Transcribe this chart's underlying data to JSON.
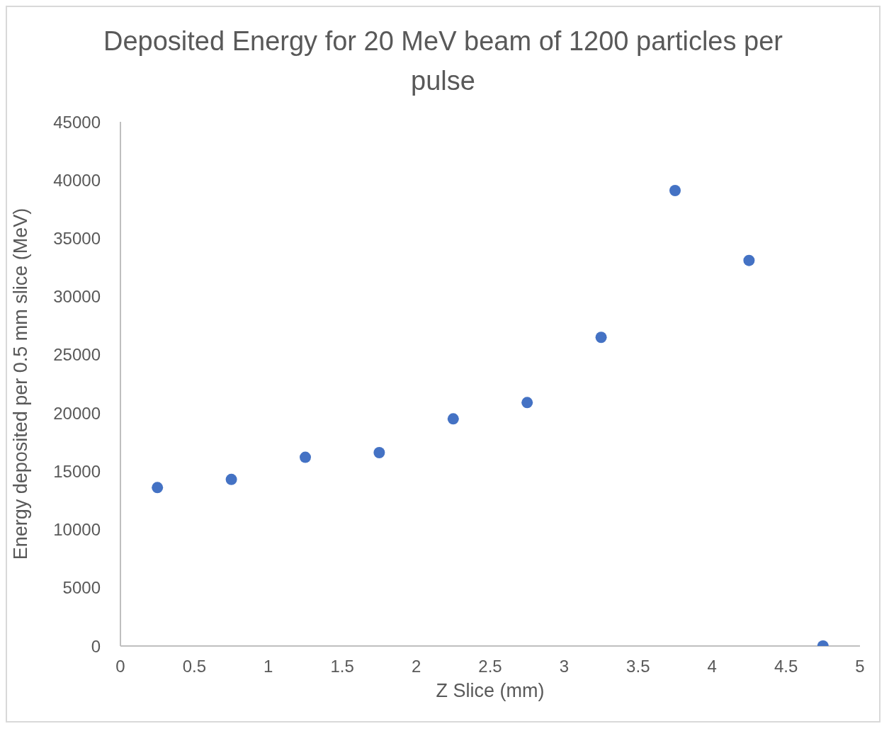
{
  "chart_data": {
    "type": "scatter",
    "title": "Deposited Energy for 20 MeV beam of 1200 particles per pulse",
    "xlabel": "Z Slice (mm)",
    "ylabel": "Energy deposited per 0.5 mm slice (MeV)",
    "x": [
      0.25,
      0.75,
      1.25,
      1.75,
      2.25,
      2.75,
      3.25,
      3.75,
      4.25,
      4.75
    ],
    "series": [
      {
        "color": "#4472c4",
        "values": [
          13600,
          14300,
          16200,
          16600,
          19500,
          20900,
          26500,
          39100,
          33100,
          0
        ]
      }
    ],
    "xlim": [
      0,
      5
    ],
    "xticks": [
      0,
      0.5,
      1,
      1.5,
      2,
      2.5,
      3,
      3.5,
      4,
      4.5,
      5
    ],
    "ylim": [
      0,
      45000
    ],
    "yticks": [
      0,
      5000,
      10000,
      15000,
      20000,
      25000,
      30000,
      35000,
      40000,
      45000
    ],
    "grid": false,
    "legend": false,
    "marker": "circle"
  }
}
